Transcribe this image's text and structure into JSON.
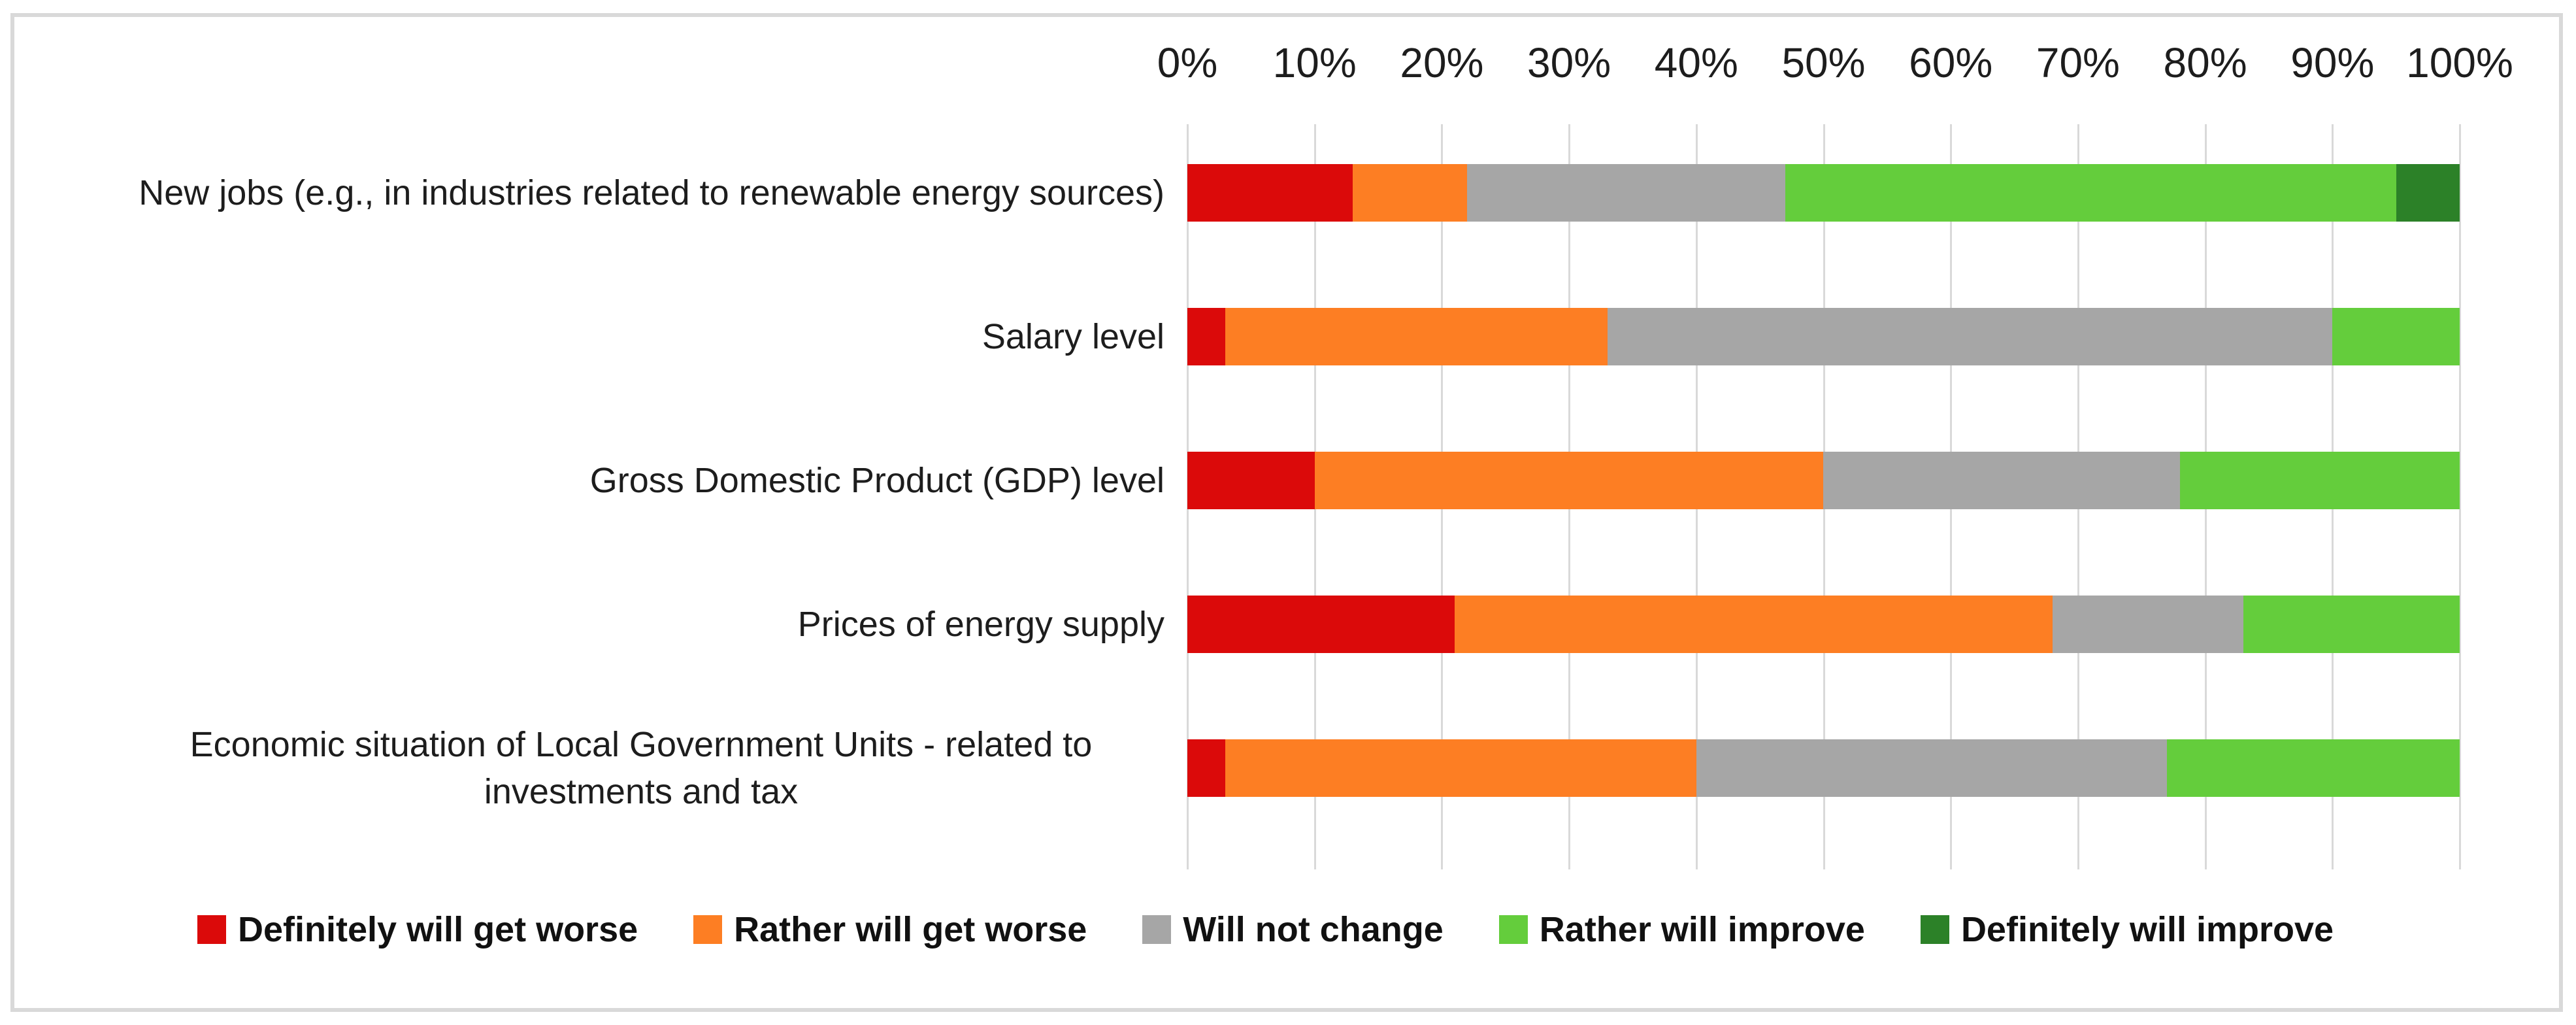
{
  "chart_data": {
    "type": "bar",
    "stacked": true,
    "orientation": "horizontal",
    "title": "",
    "categories": [
      "New jobs (e.g., in industries related to renewable energy sources)",
      "Salary level",
      "Gross Domestic Product (GDP) level",
      "Prices of energy supply",
      "Economic situation of Local Government Units - related to investments and tax"
    ],
    "series": [
      {
        "name": "Definitely will get worse",
        "color": "#db0a0a",
        "values": [
          13,
          3,
          10,
          21,
          3
        ]
      },
      {
        "name": "Rather will get worse",
        "color": "#fd7e23",
        "values": [
          9,
          30,
          40,
          47,
          37
        ]
      },
      {
        "name": "Will not change",
        "color": "#a6a6a6",
        "values": [
          25,
          57,
          28,
          15,
          37
        ]
      },
      {
        "name": "Rather will improve",
        "color": "#64cd3c",
        "values": [
          48,
          10,
          22,
          17,
          23
        ]
      },
      {
        "name": "Definitely will improve",
        "color": "#2c8128",
        "values": [
          5,
          0,
          0,
          0,
          0
        ]
      }
    ],
    "x_axis": {
      "position": "top",
      "min": 0,
      "max": 100,
      "unit": "%",
      "tick_labels": [
        "0%",
        "10%",
        "20%",
        "30%",
        "40%",
        "50%",
        "60%",
        "70%",
        "80%",
        "90%",
        "100%"
      ],
      "grid": true
    },
    "legend": {
      "position": "bottom"
    },
    "colors": {
      "grid": "#d9d9d9",
      "frame_border": "#d9d9d9",
      "background": "#ffffff",
      "text": "#1d1d1d"
    }
  }
}
